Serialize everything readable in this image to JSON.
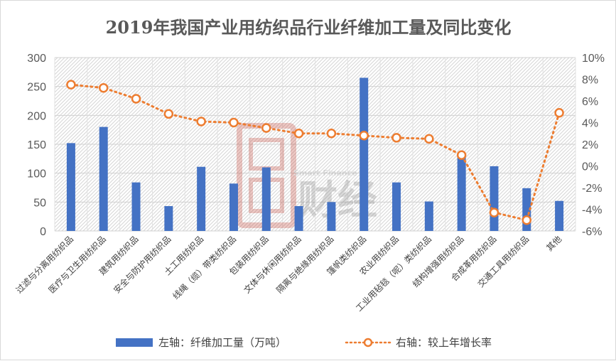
{
  "chart_data": {
    "type": "bar+line",
    "title": "2019年我国产业用纺织品行业纤维加工量及同比变化",
    "categories": [
      "过滤与分离用纺织品",
      "医疗与卫生用纺织品",
      "建筑用纺织品",
      "安全与防护用纺织品",
      "土工用纺织品",
      "线绳（缆）带类纺织品",
      "包装用纺织品",
      "文体与休闲用纺织品",
      "隔离与绝缘用纺织品",
      "篷帆类纺织品",
      "农业用纺织品",
      "工业用毡毯（呢）类纺织品",
      "结构增强用纺织品",
      "合成革用纺织品",
      "交通工具用纺织品",
      "其他"
    ],
    "series": [
      {
        "name": "左轴：纤维加工量（万吨）",
        "axis": "left",
        "kind": "bar",
        "color": "#4472C4",
        "values": [
          152,
          180,
          84,
          43,
          111,
          82,
          110,
          43,
          50,
          265,
          84,
          51,
          128,
          112,
          74,
          52
        ]
      },
      {
        "name": "右轴：较上年增长率",
        "axis": "right",
        "kind": "line",
        "color": "#ED7D31",
        "values": [
          7.5,
          7.2,
          6.2,
          4.8,
          4.1,
          4.0,
          3.5,
          3.0,
          3.0,
          2.8,
          2.6,
          2.5,
          1.0,
          -4.3,
          -5.0,
          4.9
        ]
      }
    ],
    "ylim_left": [
      0,
      300
    ],
    "yticks_left": [
      "0",
      "50",
      "100",
      "150",
      "200",
      "250",
      "300"
    ],
    "ylim_right": [
      -6,
      10
    ],
    "yticks_right": [
      "-6%",
      "-4%",
      "-2%",
      "0%",
      "2%",
      "4%",
      "6%",
      "8%",
      "10%"
    ],
    "legend_position": "bottom"
  },
  "watermark": {
    "text_small": "Smart Finance",
    "text_large": "财经"
  }
}
